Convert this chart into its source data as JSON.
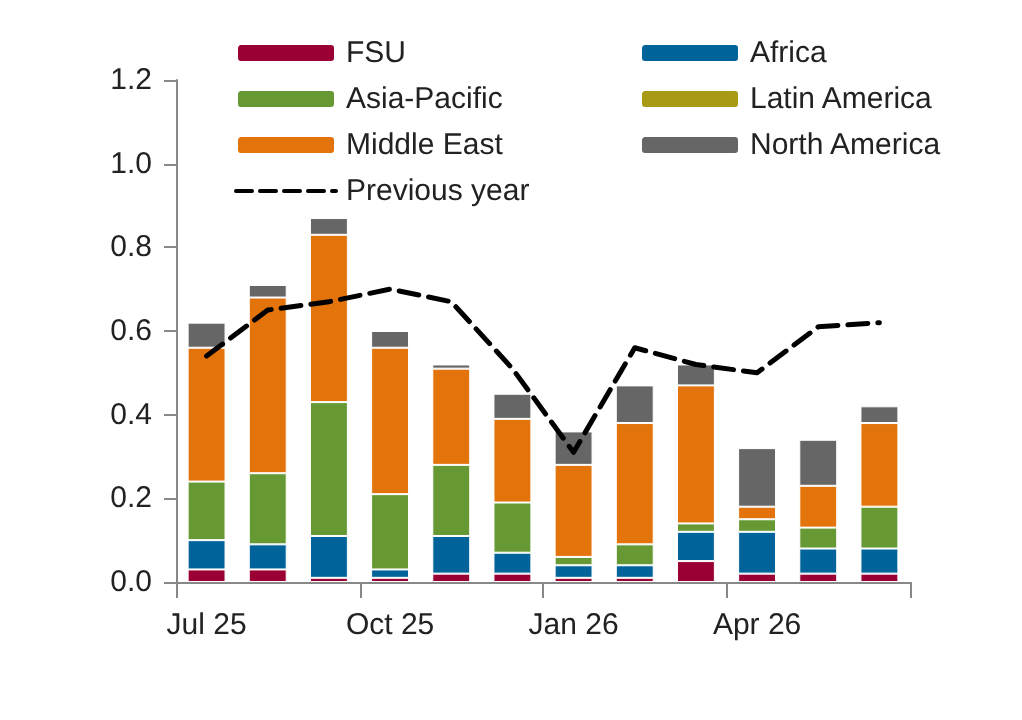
{
  "chart_data": {
    "type": "bar",
    "stacked": true,
    "categories": [
      "Jul 25",
      null,
      null,
      "Oct 25",
      null,
      null,
      "Jan 26",
      null,
      null,
      "Apr 26",
      null,
      null
    ],
    "series": [
      {
        "name": "FSU",
        "color": "#9b0034",
        "values": [
          0.03,
          0.03,
          0.01,
          0.01,
          0.02,
          0.02,
          0.01,
          0.01,
          0.05,
          0.02,
          0.02,
          0.02
        ]
      },
      {
        "name": "Africa",
        "color": "#00649a",
        "values": [
          0.07,
          0.06,
          0.1,
          0.02,
          0.09,
          0.05,
          0.03,
          0.03,
          0.07,
          0.1,
          0.06,
          0.06
        ]
      },
      {
        "name": "Asia-Pacific",
        "color": "#669933",
        "values": [
          0.14,
          0.17,
          0.32,
          0.18,
          0.17,
          0.12,
          0.02,
          0.05,
          0.02,
          0.03,
          0.05,
          0.1
        ]
      },
      {
        "name": "Latin America",
        "color": "#a89a14",
        "values": [
          0,
          0,
          0,
          0,
          0,
          0,
          0,
          0,
          0,
          0,
          0,
          0
        ]
      },
      {
        "name": "Middle East",
        "color": "#e3730b",
        "values": [
          0.32,
          0.42,
          0.4,
          0.35,
          0.23,
          0.2,
          0.22,
          0.29,
          0.33,
          0.03,
          0.1,
          0.2
        ]
      },
      {
        "name": "North America",
        "color": "#666666",
        "values": [
          0.06,
          0.03,
          0.04,
          0.04,
          0.01,
          0.06,
          0.08,
          0.09,
          0.05,
          0.14,
          0.11,
          0.04
        ]
      },
      {
        "name": "Previous year",
        "type": "line",
        "color": "#000000",
        "line_style": "dashed",
        "marker": "none",
        "values": [
          0.54,
          0.65,
          0.67,
          0.7,
          0.67,
          0.51,
          0.31,
          0.56,
          0.52,
          0.5,
          0.61,
          0.62
        ]
      }
    ],
    "ylim": [
      0,
      1.2
    ],
    "yticks": [
      {
        "value": 0,
        "label": "0.0"
      },
      {
        "value": 0.2,
        "label": "0.2"
      },
      {
        "value": 0.4,
        "label": "0.4"
      },
      {
        "value": 0.6,
        "label": "0.6"
      },
      {
        "value": 0.8,
        "label": "0.8"
      },
      {
        "value": 1,
        "label": "1.0"
      },
      {
        "value": 1.2,
        "label": "1.2"
      }
    ],
    "grid": false,
    "legend": "top"
  }
}
